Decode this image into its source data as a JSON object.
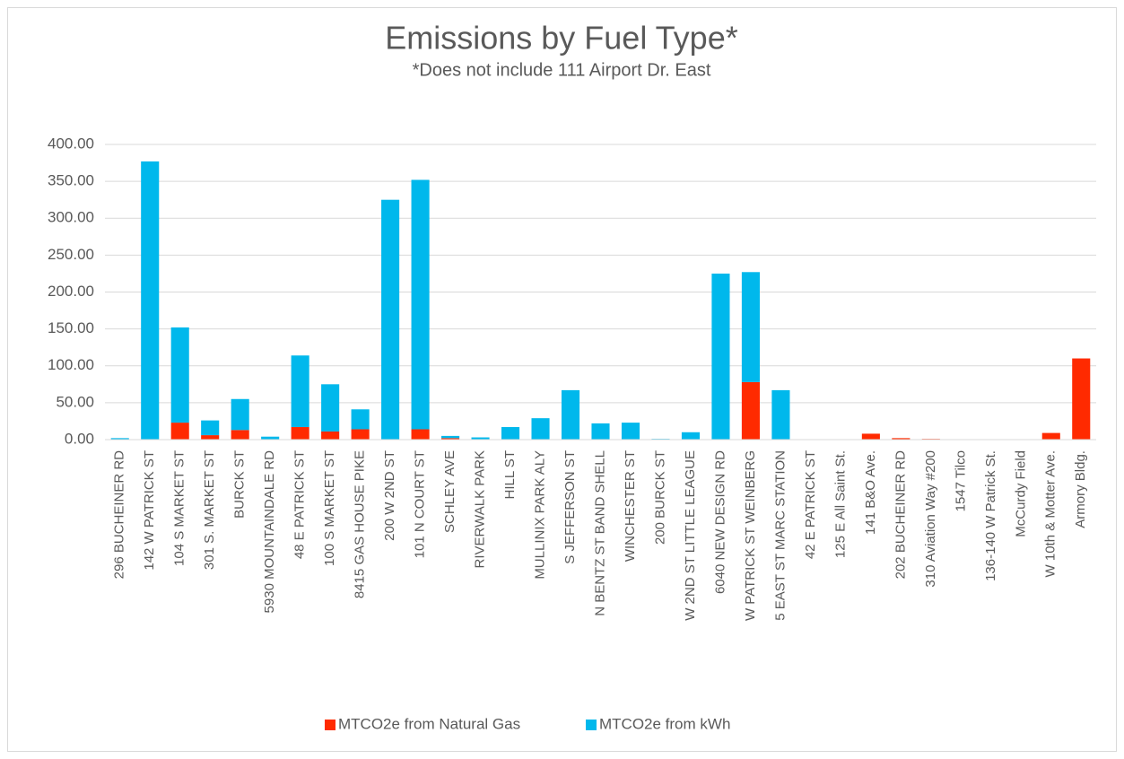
{
  "chart_data": {
    "type": "stacked_bar",
    "title": "Emissions by Fuel Type*",
    "subtitle": "*Does not include 111 Airport Dr. East",
    "categories": [
      "296 BUCHEINER RD",
      "142 W PATRICK ST",
      "104 S MARKET ST",
      "301 S. MARKET ST",
      "BURCK ST",
      "5930 MOUNTAINDALE RD",
      "48 E PATRICK ST",
      "100 S MARKET ST",
      "8415 GAS HOUSE PIKE",
      "200 W 2ND ST",
      "101 N COURT ST",
      "SCHLEY AVE",
      "RIVERWALK PARK",
      "HILL ST",
      "MULLINIX PARK ALY",
      "S JEFFERSON ST",
      "N BENTZ ST BAND SHELL",
      "WINCHESTER ST",
      "200 BURCK ST",
      "W 2ND ST LITTLE LEAGUE",
      "6040 NEW DESIGN RD",
      "W PATRICK ST WEINBERG",
      "5 EAST ST MARC STATION",
      "42 E PATRICK ST",
      "125 E All Saint St.",
      "141 B&O Ave.",
      "202 BUCHEINER RD",
      "310 Aviation Way #200",
      "1547 Tilco",
      "136-140 W Patrick St.",
      "McCurdy Field",
      "W 10th & Motter Ave.",
      "Armory Bldg."
    ],
    "series": [
      {
        "name": "MTCO2e from Natural Gas",
        "color": "#ff2a00",
        "values": [
          0,
          0,
          23,
          6,
          13,
          0,
          17,
          11,
          14,
          0,
          14,
          2,
          0,
          0,
          0,
          0,
          0,
          0,
          0,
          0,
          0,
          78,
          0,
          0,
          0,
          8,
          2,
          1,
          0,
          0,
          0,
          9,
          110
        ]
      },
      {
        "name": "MTCO2e from kWh",
        "color": "#00b8ec",
        "values": [
          2,
          377,
          129,
          20,
          42,
          4,
          97,
          64,
          27,
          325,
          338,
          3,
          3,
          17,
          29,
          67,
          22,
          23,
          1,
          10,
          225,
          149,
          67,
          0,
          0,
          0,
          0,
          0,
          0,
          0,
          0,
          0,
          0
        ]
      }
    ],
    "ylim": [
      0,
      400
    ],
    "yticks": [
      {
        "value": 0,
        "label": "0.00"
      },
      {
        "value": 50,
        "label": "50.00"
      },
      {
        "value": 100,
        "label": "100.00"
      },
      {
        "value": 150,
        "label": "150.00"
      },
      {
        "value": 200,
        "label": "200.00"
      },
      {
        "value": 250,
        "label": "250.00"
      },
      {
        "value": 300,
        "label": "300.00"
      },
      {
        "value": 350,
        "label": "350.00"
      },
      {
        "value": 400,
        "label": "400.00"
      }
    ],
    "grid": true,
    "legend": "bottom"
  }
}
